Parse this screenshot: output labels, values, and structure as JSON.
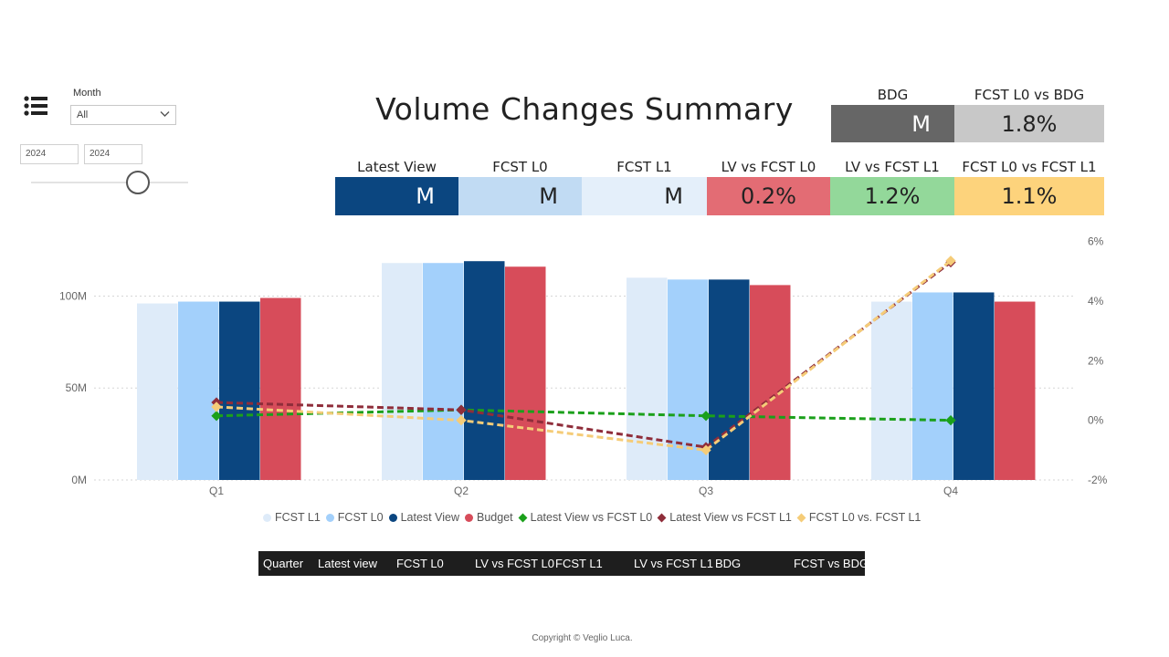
{
  "filters": {
    "month_label": "Month",
    "month_value": "All",
    "year_start": "2024",
    "year_end": "2024"
  },
  "title": "Volume Changes Summary",
  "kpis_top": [
    {
      "label": "BDG",
      "value": "M",
      "bg": "#666666",
      "fg": "#ffffff"
    },
    {
      "label": "FCST L0 vs BDG",
      "value": "1.8%",
      "bg": "#c8c8c8",
      "fg": "#222222"
    }
  ],
  "kpis": [
    {
      "label": "Latest View",
      "value": "M",
      "bg": "#0b4680",
      "fg": "#ffffff"
    },
    {
      "label": "FCST L0",
      "value": "M",
      "bg": "#c1dbf3",
      "fg": "#222222"
    },
    {
      "label": "FCST L1",
      "value": "M",
      "bg": "#e4effa",
      "fg": "#222222"
    },
    {
      "label": "LV vs FCST L0",
      "value": "0.2%",
      "bg": "#e36c74",
      "fg": "#222222"
    },
    {
      "label": "LV vs FCST L1",
      "value": "1.2%",
      "bg": "#93d89a",
      "fg": "#222222"
    },
    {
      "label": "FCST L0 vs FCST L1",
      "value": "1.1%",
      "bg": "#fdd37c",
      "fg": "#222222"
    }
  ],
  "chart_data": {
    "type": "bar",
    "categories": [
      "Q1",
      "Q2",
      "Q3",
      "Q4"
    ],
    "series": [
      {
        "name": "FCST L1",
        "kind": "bar",
        "color": "#deebf9",
        "values": [
          96,
          118,
          110,
          97
        ]
      },
      {
        "name": "FCST L0",
        "kind": "bar",
        "color": "#a3d0fb",
        "values": [
          97,
          118,
          109,
          102
        ]
      },
      {
        "name": "Latest View",
        "kind": "bar",
        "color": "#0b4680",
        "values": [
          97,
          119,
          109,
          102
        ]
      },
      {
        "name": "Budget",
        "kind": "bar",
        "color": "#d74c5a",
        "values": [
          99,
          116,
          106,
          97
        ]
      },
      {
        "name": "Latest View vs FCST L0",
        "kind": "line",
        "axis": "right",
        "color": "#1ba01b",
        "values": [
          0.15,
          0.35,
          0.15,
          0.0
        ]
      },
      {
        "name": "Latest View vs FCST L1",
        "kind": "line",
        "axis": "right",
        "color": "#8f2d3a",
        "values": [
          0.6,
          0.35,
          -0.9,
          5.3
        ]
      },
      {
        "name": "FCST L0 vs. FCST L1",
        "kind": "line",
        "axis": "right",
        "color": "#f5cc78",
        "values": [
          0.45,
          0.0,
          -1.0,
          5.35
        ]
      }
    ],
    "y_left": {
      "ticks": [
        "0M",
        "50M",
        "100M"
      ],
      "tick_values": [
        0,
        50,
        100
      ],
      "ylim": [
        0,
        133
      ]
    },
    "y_right": {
      "ticks": [
        "-2%",
        "0%",
        "2%",
        "4%",
        "6%"
      ],
      "tick_values": [
        -2,
        0,
        2,
        4,
        6
      ],
      "ylim": [
        -2,
        6.2
      ]
    },
    "grid": true,
    "legend": "bottom"
  },
  "table": {
    "headers": [
      "Quarter",
      "Latest view",
      "FCST L0",
      "LV vs FCST L0",
      "FCST L1",
      "LV vs FCST L1",
      "BDG",
      "FCST vs BDG"
    ]
  },
  "footer": "Copyright  © Veglio Luca."
}
